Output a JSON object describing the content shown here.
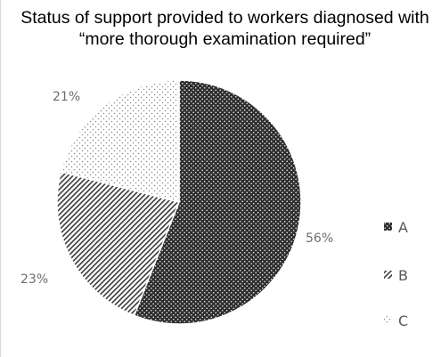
{
  "chart_data": {
    "type": "pie",
    "title": "Status of support provided to workers diagnosed with “more thorough examination required”",
    "categories": [
      "A",
      "B",
      "C"
    ],
    "values": [
      56,
      23,
      21
    ],
    "labels": [
      "56%",
      "23%",
      "21%"
    ],
    "legend": "right",
    "patterns": [
      "dense-dots",
      "diagonal-hatch",
      "sparse-dots"
    ]
  }
}
